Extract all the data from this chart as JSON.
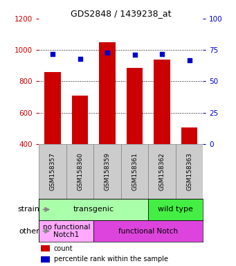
{
  "title": "GDS2848 / 1439238_at",
  "samples": [
    "GSM158357",
    "GSM158360",
    "GSM158359",
    "GSM158361",
    "GSM158362",
    "GSM158363"
  ],
  "counts": [
    860,
    710,
    1050,
    885,
    940,
    505
  ],
  "percentiles": [
    72,
    68,
    73,
    71,
    72,
    67
  ],
  "ylim_left": [
    400,
    1200
  ],
  "ylim_right": [
    0,
    100
  ],
  "yticks_left": [
    400,
    600,
    800,
    1000,
    1200
  ],
  "yticks_right": [
    0,
    25,
    50,
    75,
    100
  ],
  "bar_color": "#cc0000",
  "dot_color": "#0000cc",
  "bar_bottom": 400,
  "strain_labels": [
    {
      "text": "transgenic",
      "span": [
        0,
        4
      ],
      "color": "#aaffaa"
    },
    {
      "text": "wild type",
      "span": [
        4,
        6
      ],
      "color": "#44ee44"
    }
  ],
  "other_labels": [
    {
      "text": "no functional\nNotch1",
      "span": [
        0,
        2
      ],
      "color": "#ffaaff"
    },
    {
      "text": "functional Notch",
      "span": [
        2,
        6
      ],
      "color": "#dd44dd"
    }
  ],
  "strain_row_label": "strain",
  "other_row_label": "other",
  "legend_count_label": "count",
  "legend_pct_label": "percentile rank within the sample",
  "left_axis_color": "#cc0000",
  "right_axis_color": "#0000cc",
  "sample_label_bg": "#cccccc",
  "grid_linestyle": "dotted"
}
